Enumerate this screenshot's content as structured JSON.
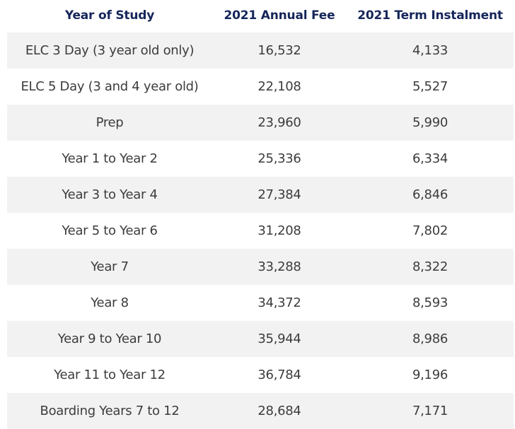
{
  "table": {
    "headers": {
      "year_of_study": "Year of Study",
      "annual_fee": "2021 Annual Fee",
      "term_instalment": "2021 Term Instalment"
    },
    "rows": [
      {
        "year": "ELC 3 Day (3 year old only)",
        "annual": "16,532",
        "term": "4,133"
      },
      {
        "year": "ELC 5 Day (3 and 4 year old)",
        "annual": "22,108",
        "term": "5,527"
      },
      {
        "year": "Prep",
        "annual": "23,960",
        "term": "5,990"
      },
      {
        "year": "Year 1 to Year 2",
        "annual": "25,336",
        "term": "6,334"
      },
      {
        "year": "Year 3 to Year 4",
        "annual": "27,384",
        "term": "6,846"
      },
      {
        "year": "Year 5 to Year 6",
        "annual": "31,208",
        "term": "7,802"
      },
      {
        "year": "Year 7",
        "annual": "33,288",
        "term": "8,322"
      },
      {
        "year": "Year 8",
        "annual": "34,372",
        "term": "8,593"
      },
      {
        "year": "Year 9 to Year 10",
        "annual": "35,944",
        "term": "8,986"
      },
      {
        "year": "Year 11 to Year 12",
        "annual": "36,784",
        "term": "9,196"
      },
      {
        "year": "Boarding Years 7 to 12",
        "annual": "28,684",
        "term": "7,171"
      }
    ]
  },
  "colors": {
    "header_text": "#16265a",
    "body_text": "#3c3c3c",
    "row_shade": "#f2f2f2"
  }
}
